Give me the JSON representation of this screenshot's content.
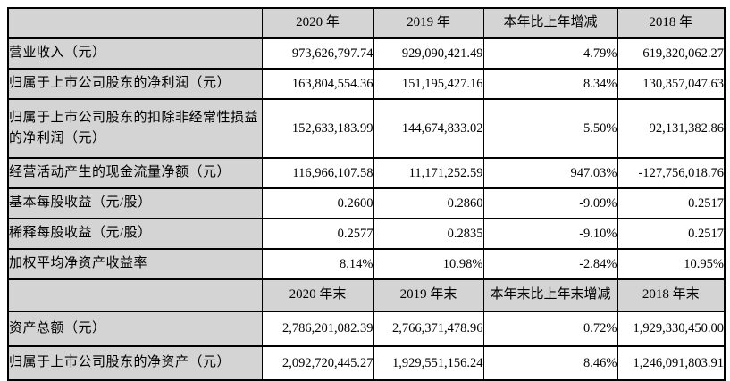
{
  "document": {
    "kind": "financial-summary-table",
    "sections": [
      {
        "header": {
          "blank": "",
          "cols": [
            "2020 年",
            "2019 年",
            "本年比上年增减",
            "2018 年"
          ]
        },
        "rows": [
          {
            "label": "营业收入（元）",
            "values": [
              "973,626,797.74",
              "929,090,421.49",
              "4.79%",
              "619,320,062.27"
            ]
          },
          {
            "label": "归属于上市公司股东的净利润（元）",
            "values": [
              "163,804,554.36",
              "151,195,427.16",
              "8.34%",
              "130,357,047.63"
            ]
          },
          {
            "label": "归属于上市公司股东的扣除非经常性损益的净利润（元）",
            "values": [
              "152,633,183.99",
              "144,674,833.02",
              "5.50%",
              "92,131,382.86"
            ]
          },
          {
            "label": "经营活动产生的现金流量净额（元）",
            "values": [
              "116,966,107.58",
              "11,171,252.59",
              "947.03%",
              "-127,756,018.76"
            ]
          },
          {
            "label": "基本每股收益（元/股）",
            "values": [
              "0.2600",
              "0.2860",
              "-9.09%",
              "0.2517"
            ]
          },
          {
            "label": "稀释每股收益（元/股）",
            "values": [
              "0.2577",
              "0.2835",
              "-9.10%",
              "0.2517"
            ]
          },
          {
            "label": "加权平均净资产收益率",
            "values": [
              "8.14%",
              "10.98%",
              "-2.84%",
              "10.95%"
            ]
          }
        ]
      },
      {
        "header": {
          "blank": "",
          "cols": [
            "2020 年末",
            "2019 年末",
            "本年末比上年末增减",
            "2018 年末"
          ]
        },
        "rows": [
          {
            "label": "资产总额（元）",
            "values": [
              "2,786,201,082.39",
              "2,766,371,478.96",
              "0.72%",
              "1,929,330,450.00"
            ]
          },
          {
            "label": "归属于上市公司股东的净资产（元）",
            "values": [
              "2,092,720,445.27",
              "1,929,551,156.24",
              "8.46%",
              "1,246,091,803.91"
            ]
          }
        ]
      }
    ],
    "colors": {
      "header_bg": "#d4d4d4",
      "label_bg": "#d4d4d4",
      "border": "#000000",
      "cell_bg": "#ffffff"
    }
  }
}
